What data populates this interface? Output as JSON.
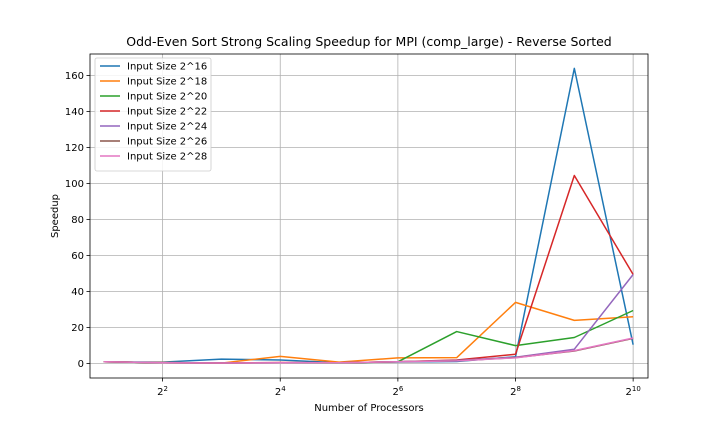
{
  "chart_data": {
    "type": "line",
    "title": "Odd-Even Sort Strong Scaling Speedup for MPI (comp_large) - Reverse Sorted",
    "xlabel": "Number of Processors",
    "ylabel": "Speedup",
    "x_scale": "log2",
    "x": [
      2,
      4,
      8,
      16,
      32,
      64,
      128,
      256,
      512,
      1024
    ],
    "xticks": [
      {
        "value": 4,
        "base": "2",
        "exp": "2"
      },
      {
        "value": 16,
        "base": "2",
        "exp": "4"
      },
      {
        "value": 64,
        "base": "2",
        "exp": "6"
      },
      {
        "value": 256,
        "base": "2",
        "exp": "8"
      },
      {
        "value": 1024,
        "base": "2",
        "exp": "10"
      }
    ],
    "yticks": [
      0,
      20,
      40,
      60,
      80,
      100,
      120,
      140,
      160
    ],
    "xlim": [
      1.7,
      1220
    ],
    "ylim": [
      -8,
      172
    ],
    "grid": true,
    "legend_position": "top-left",
    "series": [
      {
        "name": "Input Size 2^16",
        "color": "#1f77b4",
        "values": [
          1.0,
          0.8,
          2.5,
          2.0,
          0.5,
          0.9,
          1.2,
          3.8,
          164.0,
          10.5
        ]
      },
      {
        "name": "Input Size 2^18",
        "color": "#ff7f0e",
        "values": [
          1.0,
          0.6,
          0.3,
          4.0,
          0.8,
          3.2,
          3.3,
          34.0,
          24.0,
          26.0
        ]
      },
      {
        "name": "Input Size 2^20",
        "color": "#2ca02c",
        "values": [
          1.0,
          0.5,
          0.4,
          0.5,
          0.4,
          1.0,
          17.8,
          10.0,
          14.5,
          29.5
        ]
      },
      {
        "name": "Input Size 2^22",
        "color": "#d62728",
        "values": [
          1.0,
          0.5,
          0.3,
          0.6,
          0.5,
          1.0,
          2.0,
          5.2,
          104.5,
          49.5
        ]
      },
      {
        "name": "Input Size 2^24",
        "color": "#9467bd",
        "values": [
          1.0,
          0.5,
          0.3,
          0.5,
          0.5,
          1.0,
          1.8,
          3.5,
          8.0,
          49.5
        ]
      },
      {
        "name": "Input Size 2^26",
        "color": "#8c564b",
        "values": [
          1.0,
          0.5,
          0.3,
          0.5,
          0.5,
          1.0,
          1.6,
          3.3,
          7.0,
          14.0
        ]
      },
      {
        "name": "Input Size 2^28",
        "color": "#e377c2",
        "values": [
          1.0,
          0.5,
          0.3,
          0.5,
          0.5,
          1.0,
          1.5,
          3.2,
          7.2,
          14.2
        ]
      }
    ]
  }
}
